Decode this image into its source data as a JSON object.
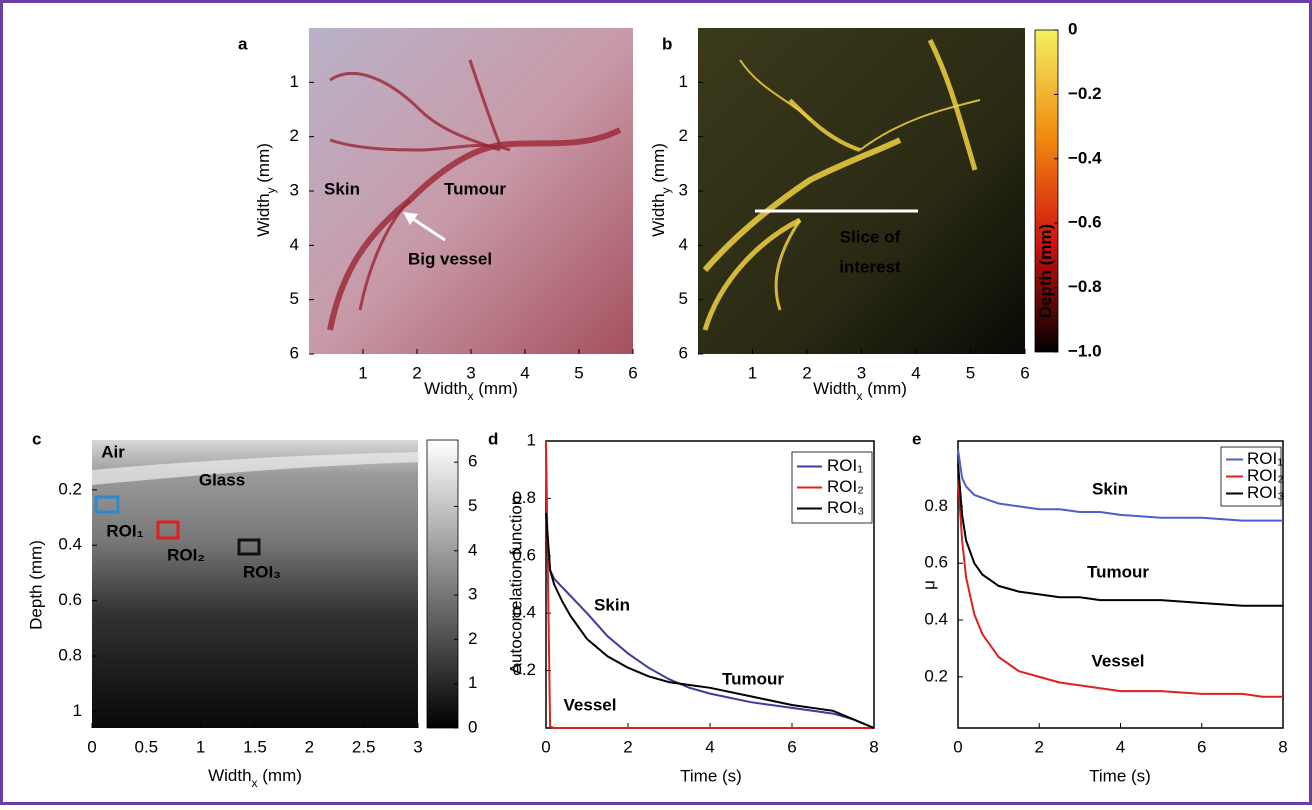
{
  "chart_data": [
    {
      "type": "image",
      "label": "a",
      "xlabel": {
        "main": "Width",
        "sub": "x",
        "unit": " (mm)"
      },
      "ylabel": {
        "main": "Width",
        "sub": "y",
        "unit": " (mm)"
      },
      "xlim": [
        0,
        6
      ],
      "xticks": [
        1,
        2,
        3,
        4,
        5,
        6
      ],
      "ylim": [
        6,
        0
      ],
      "yticks": [
        1,
        2,
        3,
        4,
        5,
        6
      ],
      "annotations": [
        {
          "text": "Skin",
          "color": "#ffffff"
        },
        {
          "text": "Tumour",
          "color": "#ffffff"
        },
        {
          "text": "Big vessel",
          "color": "#ffffff"
        }
      ]
    },
    {
      "type": "image",
      "label": "b",
      "xlabel": {
        "main": "Width",
        "sub": "x",
        "unit": " (mm)"
      },
      "ylabel": {
        "main": "Width",
        "sub": "y",
        "unit": " (mm)"
      },
      "xlim": [
        0,
        6
      ],
      "xticks": [
        1,
        2,
        3,
        4,
        5,
        6
      ],
      "ylim": [
        6,
        0
      ],
      "yticks": [
        1,
        2,
        3,
        4,
        5,
        6
      ],
      "annotations": [
        {
          "text": "Slice of",
          "color": "#ffffff"
        },
        {
          "text": "interest",
          "color": "#ffffff"
        }
      ],
      "colorbar": {
        "label": "Depth (mm)",
        "lim": [
          -1,
          0
        ],
        "colors": [
          "#000000",
          "#d01010",
          "#f08a10",
          "#f5f060"
        ],
        "ticks": [
          0,
          {
            "value": -0.2,
            "label": "−0.2"
          },
          {
            "value": -0.4,
            "label": "−0.4"
          },
          {
            "value": -0.6,
            "label": "−0.6"
          },
          {
            "value": -0.8,
            "label": "−0.8"
          },
          {
            "value": -1,
            "label": "−1.0"
          }
        ]
      }
    },
    {
      "type": "image",
      "label": "c",
      "xlabel": {
        "main": "Width",
        "sub": "x",
        "unit": " (mm)"
      },
      "ylabel": "Depth (mm)",
      "xlim": [
        0,
        3
      ],
      "xticks": [
        0,
        0.5,
        1,
        1.5,
        2,
        2.5,
        3
      ],
      "ylim": [
        1.06,
        0.02
      ],
      "yticks": [
        0.2,
        0.4,
        0.6,
        0.8,
        1
      ],
      "annotations": [
        {
          "text": "Air",
          "color": "#ffffff"
        },
        {
          "text": "Glass",
          "color": "#ffffff"
        },
        {
          "text": "ROI₁",
          "color": "#ffffff"
        },
        {
          "text": "ROI₂",
          "color": "#ffffff"
        },
        {
          "text": "ROI₃",
          "color": "#ffffff"
        }
      ],
      "colorbar": {
        "lim": [
          0,
          6.5
        ],
        "colors": [
          "#000000",
          "#ffffff"
        ],
        "ticks": [
          0,
          1,
          2,
          3,
          4,
          5,
          6
        ]
      }
    },
    {
      "type": "line",
      "label": "d",
      "xlabel": "Time (s)",
      "ylabel": "Autocorrelation function",
      "xlim": [
        0,
        8
      ],
      "xticks": [
        0,
        2,
        4,
        6,
        8
      ],
      "ylim": [
        0,
        1
      ],
      "yticks": [
        0.2,
        0.4,
        0.6,
        0.8,
        1
      ],
      "legend": true,
      "legend_loc": "upper right",
      "x": [
        0,
        0.1,
        0.2,
        0.4,
        0.6,
        0.8,
        1,
        1.5,
        2,
        2.5,
        3,
        3.5,
        4,
        5,
        6,
        7,
        7.5,
        8
      ],
      "series": [
        {
          "name": "ROI₁",
          "color": "#3b3ba0",
          "values": [
            0.75,
            0.55,
            0.52,
            0.49,
            0.46,
            0.43,
            0.4,
            0.32,
            0.26,
            0.21,
            0.17,
            0.14,
            0.12,
            0.09,
            0.07,
            0.05,
            0.03,
            0
          ]
        },
        {
          "name": "ROI₂",
          "color": "#e02020",
          "values": [
            1,
            0.005,
            0,
            0,
            0,
            0,
            0,
            0,
            0,
            0,
            0,
            0,
            0,
            0,
            0,
            0,
            0,
            0
          ]
        },
        {
          "name": "ROI₃",
          "color": "#000000",
          "values": [
            0.75,
            0.55,
            0.5,
            0.44,
            0.39,
            0.35,
            0.31,
            0.25,
            0.21,
            0.18,
            0.16,
            0.15,
            0.14,
            0.11,
            0.08,
            0.06,
            0.03,
            0
          ]
        }
      ],
      "annotations": [
        {
          "text": "Skin",
          "color": "#3b3ba0"
        },
        {
          "text": "Tumour",
          "color": "#000000"
        },
        {
          "text": "Vessel",
          "color": "#e02020"
        }
      ]
    },
    {
      "type": "line",
      "label": "e",
      "xlabel": "Time (s)",
      "ylabel": "μ",
      "xlim": [
        0,
        8
      ],
      "xticks": [
        0,
        2,
        4,
        6,
        8
      ],
      "ylim": [
        0.02,
        1.03
      ],
      "yticks": [
        0.2,
        0.4,
        0.6,
        0.8
      ],
      "legend": true,
      "legend_loc": "upper right",
      "x": [
        0,
        0.1,
        0.2,
        0.4,
        0.6,
        0.8,
        1,
        1.5,
        2,
        2.5,
        3,
        3.5,
        4,
        5,
        6,
        7,
        7.5,
        8
      ],
      "series": [
        {
          "name": "ROI₁",
          "color": "#4a5fc8",
          "values": [
            1,
            0.9,
            0.87,
            0.84,
            0.83,
            0.82,
            0.81,
            0.8,
            0.79,
            0.79,
            0.78,
            0.78,
            0.77,
            0.76,
            0.76,
            0.75,
            0.75,
            0.75
          ]
        },
        {
          "name": "ROI₂",
          "color": "#e02020",
          "values": [
            0.9,
            0.68,
            0.55,
            0.42,
            0.35,
            0.31,
            0.27,
            0.22,
            0.2,
            0.18,
            0.17,
            0.16,
            0.15,
            0.15,
            0.14,
            0.14,
            0.13,
            0.13
          ]
        },
        {
          "name": "ROI₃",
          "color": "#000000",
          "values": [
            0.95,
            0.77,
            0.68,
            0.6,
            0.56,
            0.54,
            0.52,
            0.5,
            0.49,
            0.48,
            0.48,
            0.47,
            0.47,
            0.47,
            0.46,
            0.45,
            0.45,
            0.45
          ]
        }
      ],
      "annotations": [
        {
          "text": "Skin",
          "color": "#3b3ba0"
        },
        {
          "text": "Tumour",
          "color": "#000000"
        },
        {
          "text": "Vessel",
          "color": "#e02020"
        }
      ]
    }
  ]
}
